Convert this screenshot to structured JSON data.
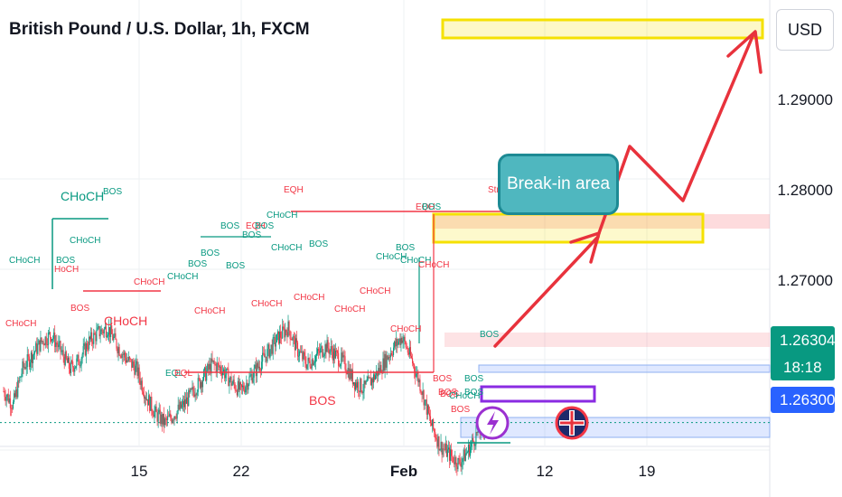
{
  "header": {
    "title": "British Pound / U.S. Dollar, 1h, FXCM",
    "currency_button": "USD"
  },
  "price_axis": {
    "ticks": [
      {
        "value": 1.29,
        "label": "1.29000"
      },
      {
        "value": 1.28,
        "label": "1.28000"
      },
      {
        "value": 1.27,
        "label": "1.27000"
      }
    ],
    "last_price": "1.26304",
    "countdown": "18:18",
    "bid_price": "1.26300"
  },
  "time_axis": {
    "ticks": [
      {
        "label": "15",
        "bold": false
      },
      {
        "label": "22",
        "bold": false
      },
      {
        "label": "Feb",
        "bold": true
      },
      {
        "label": "12",
        "bold": false
      },
      {
        "label": "19",
        "bold": false
      }
    ]
  },
  "callout": {
    "text": "Break-in area"
  },
  "colors": {
    "bull": "#089981",
    "bear": "#f23645",
    "accent_red": "#e8323c",
    "zone_yellow": "#f5e100",
    "zone_pink": "#f7c6c9",
    "zone_blue": "#c5d7f5",
    "purple": "#8a2be2",
    "teal": "#4fb7bf"
  },
  "icons": [
    "lightning-event-icon",
    "uk-flag-event-icon"
  ],
  "chart_data": {
    "type": "candlestick",
    "symbol": "GBPUSD",
    "timeframe": "1h",
    "ylim": [
      1.2575,
      1.2985
    ],
    "path": [
      [
        0,
        1.2665
      ],
      [
        1,
        1.265
      ],
      [
        2,
        1.269
      ],
      [
        3,
        1.2705
      ],
      [
        4,
        1.272
      ],
      [
        5,
        1.2728
      ],
      [
        6,
        1.271
      ],
      [
        7,
        1.269
      ],
      [
        8,
        1.27
      ],
      [
        9,
        1.272
      ],
      [
        10,
        1.273
      ],
      [
        11,
        1.2735
      ],
      [
        12,
        1.2715
      ],
      [
        13,
        1.27
      ],
      [
        14,
        1.269
      ],
      [
        15,
        1.266
      ],
      [
        16,
        1.264
      ],
      [
        17,
        1.263
      ],
      [
        18,
        1.264
      ],
      [
        19,
        1.265
      ],
      [
        20,
        1.2665
      ],
      [
        21,
        1.268
      ],
      [
        22,
        1.2695
      ],
      [
        23,
        1.269
      ],
      [
        24,
        1.2675
      ],
      [
        25,
        1.2665
      ],
      [
        26,
        1.268
      ],
      [
        27,
        1.2695
      ],
      [
        28,
        1.271
      ],
      [
        29,
        1.2725
      ],
      [
        30,
        1.2735
      ],
      [
        31,
        1.271
      ],
      [
        32,
        1.2695
      ],
      [
        33,
        1.2705
      ],
      [
        34,
        1.2715
      ],
      [
        35,
        1.2705
      ],
      [
        36,
        1.2695
      ],
      [
        37,
        1.2675
      ],
      [
        38,
        1.2668
      ],
      [
        39,
        1.268
      ],
      [
        40,
        1.2695
      ],
      [
        41,
        1.2712
      ],
      [
        42,
        1.2725
      ],
      [
        43,
        1.27
      ],
      [
        44,
        1.267
      ],
      [
        45,
        1.263
      ],
      [
        46,
        1.2605
      ],
      [
        47,
        1.2595
      ],
      [
        48,
        1.2585
      ],
      [
        49,
        1.26
      ],
      [
        50,
        1.262
      ],
      [
        51,
        1.263
      ]
    ],
    "last": 1.26304,
    "bid": 1.263,
    "labels": [
      {
        "text": "CHoCH",
        "color": "#089981",
        "size": 14,
        "x": 67,
        "y": 210
      },
      {
        "text": "BOS",
        "color": "#089981",
        "size": 10,
        "x": 114,
        "y": 208
      },
      {
        "text": "EQH",
        "color": "#f23645",
        "size": 10,
        "x": 314,
        "y": 206
      },
      {
        "text": "Strong High",
        "color": "#f23645",
        "size": 10,
        "x": 540,
        "y": 206
      },
      {
        "text": "EQH",
        "color": "#f23645",
        "size": 10,
        "x": 460,
        "y": 225
      },
      {
        "text": "BOS",
        "color": "#089981",
        "size": 10,
        "x": 467,
        "y": 225
      },
      {
        "text": "CHoCH",
        "color": "#089981",
        "size": 10,
        "x": 295,
        "y": 234
      },
      {
        "text": "EQH",
        "color": "#f23645",
        "size": 10,
        "x": 272,
        "y": 246
      },
      {
        "text": "BOS",
        "color": "#089981",
        "size": 10,
        "x": 282,
        "y": 246
      },
      {
        "text": "BOS",
        "color": "#089981",
        "size": 10,
        "x": 244,
        "y": 246
      },
      {
        "text": "BOS",
        "color": "#089981",
        "size": 10,
        "x": 268,
        "y": 256
      },
      {
        "text": "CHoCH",
        "color": "#089981",
        "size": 10,
        "x": 77,
        "y": 262
      },
      {
        "text": "BOS",
        "color": "#089981",
        "size": 10,
        "x": 342,
        "y": 266
      },
      {
        "text": "CHoCH",
        "color": "#089981",
        "size": 10,
        "x": 300,
        "y": 270
      },
      {
        "text": "BOS",
        "color": "#089981",
        "size": 10,
        "x": 222,
        "y": 276
      },
      {
        "text": "BOS",
        "color": "#089981",
        "size": 10,
        "x": 438,
        "y": 270
      },
      {
        "text": "CHoCH",
        "color": "#089981",
        "size": 10,
        "x": 416,
        "y": 280
      },
      {
        "text": "CHoCH",
        "color": "#089981",
        "size": 10,
        "x": 443,
        "y": 284
      },
      {
        "text": "CHoCH",
        "color": "#089981",
        "size": 10,
        "x": 10,
        "y": 284
      },
      {
        "text": "BOS",
        "color": "#089981",
        "size": 10,
        "x": 62,
        "y": 284
      },
      {
        "text": "BOS",
        "color": "#089981",
        "size": 10,
        "x": 208,
        "y": 288
      },
      {
        "text": "BOS",
        "color": "#089981",
        "size": 10,
        "x": 250,
        "y": 290
      },
      {
        "text": "CHoCH",
        "color": "#f23645",
        "size": 10,
        "x": 463,
        "y": 289
      },
      {
        "text": "HoCH",
        "color": "#f23645",
        "size": 10,
        "x": 60,
        "y": 294
      },
      {
        "text": "CHoCH",
        "color": "#089981",
        "size": 10,
        "x": 185,
        "y": 302
      },
      {
        "text": "CHoCH",
        "color": "#f23645",
        "size": 10,
        "x": 148,
        "y": 308
      },
      {
        "text": "CHoCH",
        "color": "#f23645",
        "size": 10,
        "x": 398,
        "y": 318
      },
      {
        "text": "CHoCH",
        "color": "#f23645",
        "size": 10,
        "x": 325,
        "y": 325
      },
      {
        "text": "CHoCH",
        "color": "#f23645",
        "size": 10,
        "x": 278,
        "y": 332
      },
      {
        "text": "BOS",
        "color": "#f23645",
        "size": 10,
        "x": 78,
        "y": 337
      },
      {
        "text": "CHoCH",
        "color": "#f23645",
        "size": 10,
        "x": 370,
        "y": 338
      },
      {
        "text": "CHoCH",
        "color": "#f23645",
        "size": 10,
        "x": 215,
        "y": 340
      },
      {
        "text": "CHoCH",
        "color": "#f23645",
        "size": 14,
        "x": 115,
        "y": 348
      },
      {
        "text": "CHoCH",
        "color": "#f23645",
        "size": 10,
        "x": 6,
        "y": 354
      },
      {
        "text": "CHoCH",
        "color": "#f23645",
        "size": 10,
        "x": 432,
        "y": 360
      },
      {
        "text": "BOS",
        "color": "#089981",
        "size": 10,
        "x": 531,
        "y": 366
      },
      {
        "text": "EQL",
        "color": "#089981",
        "size": 10,
        "x": 183,
        "y": 409
      },
      {
        "text": "EQL",
        "color": "#f23645",
        "size": 10,
        "x": 193,
        "y": 409
      },
      {
        "text": "BOS",
        "color": "#f23645",
        "size": 10,
        "x": 479,
        "y": 415
      },
      {
        "text": "BOS",
        "color": "#089981",
        "size": 10,
        "x": 514,
        "y": 415
      },
      {
        "text": "BOS",
        "color": "#f23645",
        "size": 10,
        "x": 485,
        "y": 430
      },
      {
        "text": "BOS",
        "color": "#f23645",
        "size": 14,
        "x": 342,
        "y": 436
      },
      {
        "text": "BOS",
        "color": "#089981",
        "size": 10,
        "x": 514,
        "y": 430
      },
      {
        "text": "BOS",
        "color": "#f23645",
        "size": 10,
        "x": 487,
        "y": 432
      },
      {
        "text": "CHoCH",
        "color": "#089981",
        "size": 10,
        "x": 497,
        "y": 434
      },
      {
        "text": "BOS",
        "color": "#f23645",
        "size": 10,
        "x": 499,
        "y": 449
      }
    ]
  }
}
